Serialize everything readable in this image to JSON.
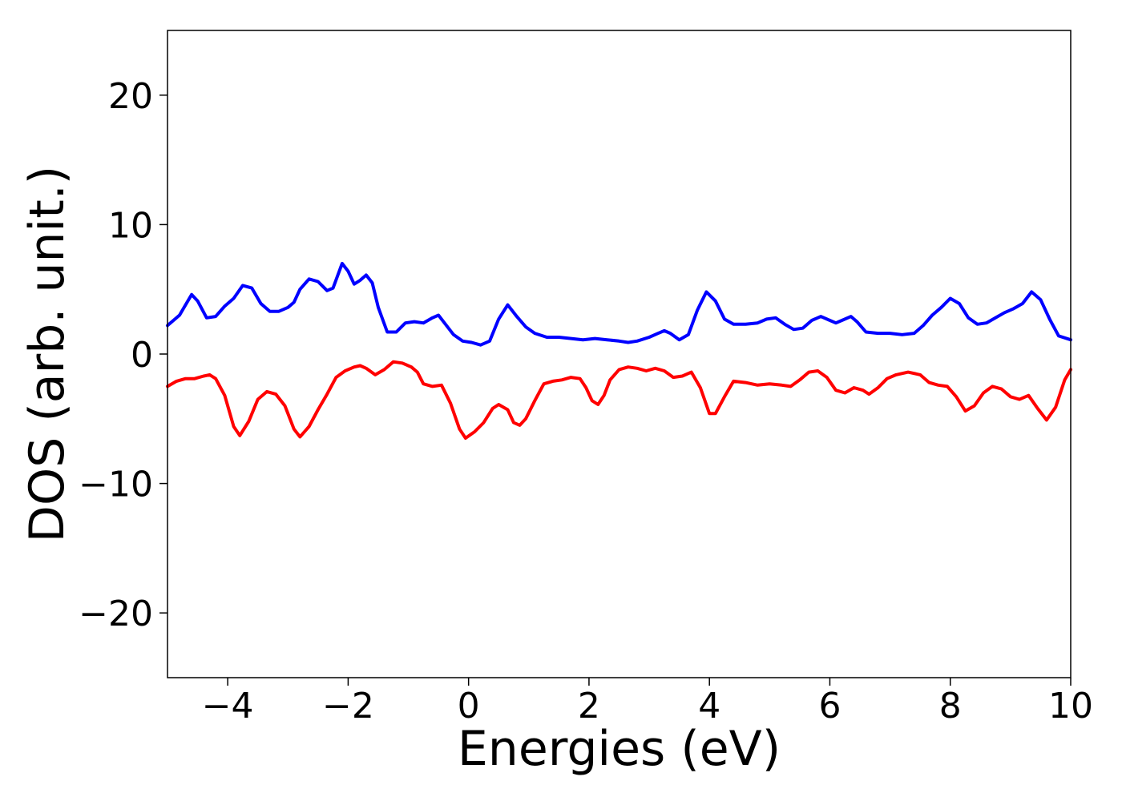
{
  "chart_data": {
    "type": "line",
    "title": "",
    "xlabel": "Energies (eV)",
    "ylabel": "DOS (arb. unit.)",
    "xlim": [
      -5,
      10
    ],
    "ylim": [
      -25,
      25
    ],
    "xticks": [
      -4,
      -2,
      0,
      2,
      4,
      6,
      8,
      10
    ],
    "yticks": [
      -20,
      -10,
      0,
      10,
      20
    ],
    "grid": false,
    "legend": "none",
    "series": [
      {
        "color": "#0000ff",
        "points": [
          [
            -5.0,
            2.2
          ],
          [
            -4.8,
            3.0
          ],
          [
            -4.6,
            4.6
          ],
          [
            -4.5,
            4.1
          ],
          [
            -4.35,
            2.8
          ],
          [
            -4.2,
            2.9
          ],
          [
            -4.05,
            3.7
          ],
          [
            -3.9,
            4.3
          ],
          [
            -3.75,
            5.3
          ],
          [
            -3.6,
            5.1
          ],
          [
            -3.45,
            3.9
          ],
          [
            -3.3,
            3.3
          ],
          [
            -3.15,
            3.3
          ],
          [
            -3.0,
            3.6
          ],
          [
            -2.9,
            4.0
          ],
          [
            -2.8,
            5.0
          ],
          [
            -2.65,
            5.8
          ],
          [
            -2.5,
            5.6
          ],
          [
            -2.35,
            4.9
          ],
          [
            -2.25,
            5.1
          ],
          [
            -2.1,
            7.0
          ],
          [
            -2.0,
            6.4
          ],
          [
            -1.9,
            5.4
          ],
          [
            -1.8,
            5.7
          ],
          [
            -1.7,
            6.1
          ],
          [
            -1.6,
            5.5
          ],
          [
            -1.5,
            3.6
          ],
          [
            -1.35,
            1.7
          ],
          [
            -1.2,
            1.7
          ],
          [
            -1.05,
            2.4
          ],
          [
            -0.9,
            2.5
          ],
          [
            -0.75,
            2.4
          ],
          [
            -0.6,
            2.8
          ],
          [
            -0.5,
            3.0
          ],
          [
            -0.4,
            2.4
          ],
          [
            -0.25,
            1.5
          ],
          [
            -0.1,
            1.0
          ],
          [
            0.05,
            0.9
          ],
          [
            0.2,
            0.7
          ],
          [
            0.35,
            1.0
          ],
          [
            0.5,
            2.7
          ],
          [
            0.65,
            3.8
          ],
          [
            0.8,
            2.9
          ],
          [
            0.95,
            2.1
          ],
          [
            1.1,
            1.6
          ],
          [
            1.3,
            1.3
          ],
          [
            1.5,
            1.3
          ],
          [
            1.7,
            1.2
          ],
          [
            1.9,
            1.1
          ],
          [
            2.1,
            1.2
          ],
          [
            2.3,
            1.1
          ],
          [
            2.5,
            1.0
          ],
          [
            2.65,
            0.9
          ],
          [
            2.8,
            1.0
          ],
          [
            3.0,
            1.3
          ],
          [
            3.15,
            1.6
          ],
          [
            3.25,
            1.8
          ],
          [
            3.35,
            1.6
          ],
          [
            3.5,
            1.1
          ],
          [
            3.65,
            1.5
          ],
          [
            3.8,
            3.4
          ],
          [
            3.95,
            4.8
          ],
          [
            4.1,
            4.1
          ],
          [
            4.25,
            2.7
          ],
          [
            4.4,
            2.3
          ],
          [
            4.6,
            2.3
          ],
          [
            4.8,
            2.4
          ],
          [
            4.95,
            2.7
          ],
          [
            5.1,
            2.8
          ],
          [
            5.25,
            2.3
          ],
          [
            5.4,
            1.9
          ],
          [
            5.55,
            2.0
          ],
          [
            5.7,
            2.6
          ],
          [
            5.85,
            2.9
          ],
          [
            6.0,
            2.6
          ],
          [
            6.1,
            2.4
          ],
          [
            6.2,
            2.6
          ],
          [
            6.35,
            2.9
          ],
          [
            6.45,
            2.5
          ],
          [
            6.6,
            1.7
          ],
          [
            6.8,
            1.6
          ],
          [
            7.0,
            1.6
          ],
          [
            7.2,
            1.5
          ],
          [
            7.4,
            1.6
          ],
          [
            7.55,
            2.2
          ],
          [
            7.7,
            3.0
          ],
          [
            7.85,
            3.6
          ],
          [
            8.0,
            4.3
          ],
          [
            8.15,
            3.9
          ],
          [
            8.3,
            2.8
          ],
          [
            8.45,
            2.3
          ],
          [
            8.6,
            2.4
          ],
          [
            8.75,
            2.8
          ],
          [
            8.9,
            3.2
          ],
          [
            9.05,
            3.5
          ],
          [
            9.2,
            3.9
          ],
          [
            9.35,
            4.8
          ],
          [
            9.5,
            4.2
          ],
          [
            9.65,
            2.7
          ],
          [
            9.8,
            1.4
          ],
          [
            10.0,
            1.1
          ]
        ]
      },
      {
        "color": "#ff0000",
        "points": [
          [
            -5.0,
            -2.5
          ],
          [
            -4.85,
            -2.1
          ],
          [
            -4.7,
            -1.9
          ],
          [
            -4.55,
            -1.9
          ],
          [
            -4.4,
            -1.7
          ],
          [
            -4.3,
            -1.6
          ],
          [
            -4.2,
            -1.9
          ],
          [
            -4.05,
            -3.2
          ],
          [
            -3.9,
            -5.6
          ],
          [
            -3.8,
            -6.3
          ],
          [
            -3.65,
            -5.2
          ],
          [
            -3.5,
            -3.5
          ],
          [
            -3.35,
            -2.9
          ],
          [
            -3.2,
            -3.1
          ],
          [
            -3.05,
            -4.0
          ],
          [
            -2.9,
            -5.8
          ],
          [
            -2.8,
            -6.4
          ],
          [
            -2.65,
            -5.6
          ],
          [
            -2.5,
            -4.3
          ],
          [
            -2.35,
            -3.1
          ],
          [
            -2.2,
            -1.8
          ],
          [
            -2.05,
            -1.3
          ],
          [
            -1.9,
            -1.0
          ],
          [
            -1.8,
            -0.9
          ],
          [
            -1.7,
            -1.1
          ],
          [
            -1.55,
            -1.6
          ],
          [
            -1.4,
            -1.2
          ],
          [
            -1.25,
            -0.6
          ],
          [
            -1.1,
            -0.7
          ],
          [
            -0.95,
            -1.0
          ],
          [
            -0.85,
            -1.4
          ],
          [
            -0.75,
            -2.3
          ],
          [
            -0.6,
            -2.5
          ],
          [
            -0.45,
            -2.4
          ],
          [
            -0.3,
            -3.8
          ],
          [
            -0.15,
            -5.8
          ],
          [
            -0.05,
            -6.5
          ],
          [
            0.1,
            -6.0
          ],
          [
            0.25,
            -5.3
          ],
          [
            0.4,
            -4.2
          ],
          [
            0.5,
            -3.9
          ],
          [
            0.65,
            -4.3
          ],
          [
            0.75,
            -5.3
          ],
          [
            0.85,
            -5.5
          ],
          [
            0.95,
            -5.0
          ],
          [
            1.1,
            -3.6
          ],
          [
            1.25,
            -2.3
          ],
          [
            1.4,
            -2.1
          ],
          [
            1.55,
            -2.0
          ],
          [
            1.7,
            -1.8
          ],
          [
            1.85,
            -1.9
          ],
          [
            1.95,
            -2.6
          ],
          [
            2.05,
            -3.6
          ],
          [
            2.15,
            -3.9
          ],
          [
            2.25,
            -3.2
          ],
          [
            2.35,
            -2.0
          ],
          [
            2.5,
            -1.2
          ],
          [
            2.65,
            -1.0
          ],
          [
            2.8,
            -1.1
          ],
          [
            2.95,
            -1.3
          ],
          [
            3.1,
            -1.1
          ],
          [
            3.25,
            -1.3
          ],
          [
            3.4,
            -1.8
          ],
          [
            3.55,
            -1.7
          ],
          [
            3.7,
            -1.4
          ],
          [
            3.85,
            -2.6
          ],
          [
            4.0,
            -4.6
          ],
          [
            4.1,
            -4.6
          ],
          [
            4.25,
            -3.3
          ],
          [
            4.4,
            -2.1
          ],
          [
            4.6,
            -2.2
          ],
          [
            4.8,
            -2.4
          ],
          [
            5.0,
            -2.3
          ],
          [
            5.2,
            -2.4
          ],
          [
            5.35,
            -2.5
          ],
          [
            5.5,
            -2.0
          ],
          [
            5.65,
            -1.4
          ],
          [
            5.8,
            -1.3
          ],
          [
            5.95,
            -1.8
          ],
          [
            6.1,
            -2.8
          ],
          [
            6.25,
            -3.0
          ],
          [
            6.4,
            -2.6
          ],
          [
            6.55,
            -2.8
          ],
          [
            6.65,
            -3.1
          ],
          [
            6.8,
            -2.6
          ],
          [
            6.95,
            -1.9
          ],
          [
            7.1,
            -1.6
          ],
          [
            7.3,
            -1.4
          ],
          [
            7.5,
            -1.6
          ],
          [
            7.65,
            -2.2
          ],
          [
            7.8,
            -2.4
          ],
          [
            7.95,
            -2.5
          ],
          [
            8.1,
            -3.3
          ],
          [
            8.25,
            -4.4
          ],
          [
            8.4,
            -4.0
          ],
          [
            8.55,
            -3.0
          ],
          [
            8.7,
            -2.5
          ],
          [
            8.85,
            -2.7
          ],
          [
            9.0,
            -3.3
          ],
          [
            9.15,
            -3.5
          ],
          [
            9.3,
            -3.2
          ],
          [
            9.45,
            -4.2
          ],
          [
            9.6,
            -5.1
          ],
          [
            9.75,
            -4.1
          ],
          [
            9.9,
            -2.0
          ],
          [
            10.0,
            -1.2
          ]
        ]
      }
    ]
  }
}
